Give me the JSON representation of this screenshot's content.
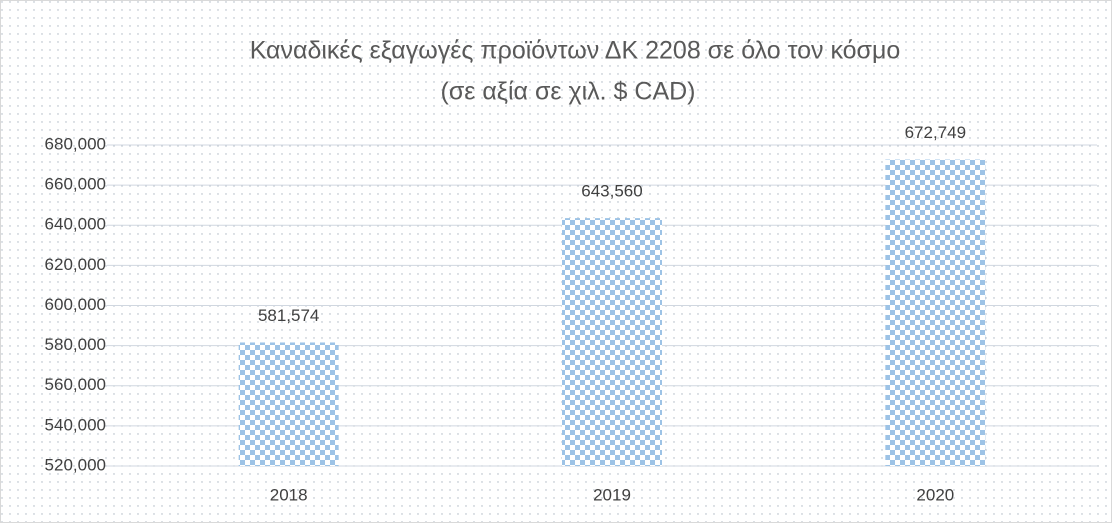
{
  "chart_data": {
    "type": "bar",
    "title": "Καναδικές εξαγωγές προϊόντων ΔΚ 2208 σε όλο τον κόσμο",
    "subtitle": "(σε αξία σε χιλ. $ CAD)",
    "categories": [
      "2018",
      "2019",
      "2020"
    ],
    "values": [
      581574,
      643560,
      672749
    ],
    "value_labels": [
      "581,574",
      "643,560",
      "672,749"
    ],
    "color": "#9dc3e6",
    "ylim": [
      520000,
      680000
    ],
    "yticks": [
      {
        "value": 520000,
        "label": "520,000"
      },
      {
        "value": 540000,
        "label": "540,000"
      },
      {
        "value": 560000,
        "label": "560,000"
      },
      {
        "value": 580000,
        "label": "580,000"
      },
      {
        "value": 600000,
        "label": "600,000"
      },
      {
        "value": 620000,
        "label": "620,000"
      },
      {
        "value": 640000,
        "label": "640,000"
      },
      {
        "value": 660000,
        "label": "660,000"
      },
      {
        "value": 680000,
        "label": "680,000"
      }
    ],
    "grid": true
  }
}
